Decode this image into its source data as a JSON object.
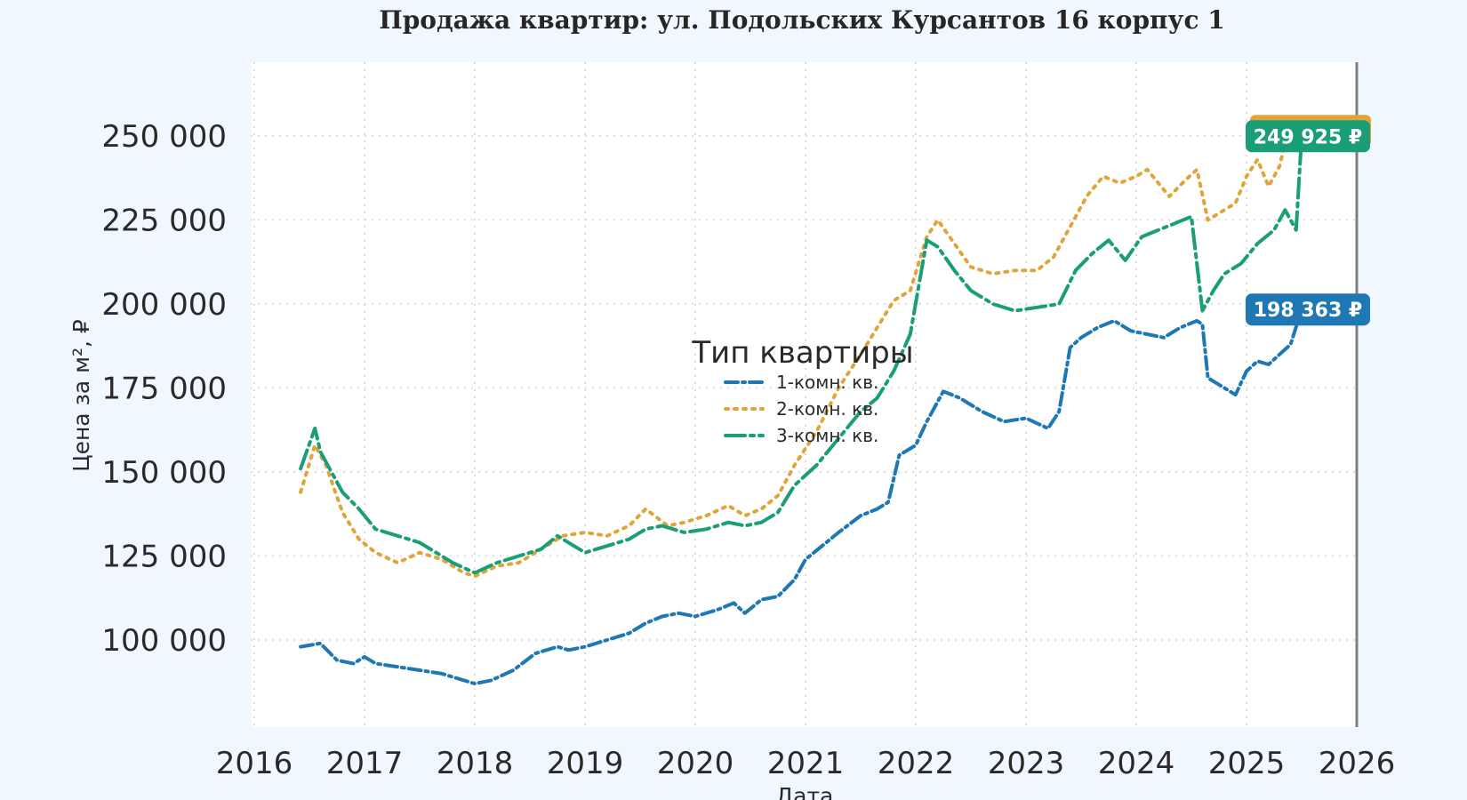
{
  "chart_data": {
    "type": "line",
    "title": "Продажа квартир: ул. Подольских Курсантов 16 корпус 1",
    "xlabel": "Дата",
    "ylabel": "Цена за м², ₽",
    "xlim": [
      2016,
      2026
    ],
    "ylim": [
      82000,
      270000
    ],
    "x_ticks": [
      "2016",
      "2017",
      "2018",
      "2019",
      "2020",
      "2021",
      "2022",
      "2023",
      "2024",
      "2025",
      "2026"
    ],
    "y_ticks": [
      "100 000",
      "125 000",
      "150 000",
      "175 000",
      "200 000",
      "225 000",
      "250 000"
    ],
    "y_tick_values": [
      100000,
      125000,
      150000,
      175000,
      200000,
      225000,
      250000
    ],
    "grid": true,
    "legend": {
      "title": "Тип квартиры",
      "position": "center"
    },
    "series": [
      {
        "name": "1-комн. кв.",
        "color": "#1f77b4",
        "dash": "dash-dot",
        "x": [
          2016.42,
          2016.6,
          2016.75,
          2016.9,
          2017.0,
          2017.1,
          2017.3,
          2017.5,
          2017.7,
          2017.9,
          2018.0,
          2018.15,
          2018.35,
          2018.55,
          2018.75,
          2018.85,
          2019.0,
          2019.2,
          2019.4,
          2019.55,
          2019.7,
          2019.85,
          2020.0,
          2020.2,
          2020.35,
          2020.45,
          2020.6,
          2020.75,
          2020.9,
          2021.0,
          2021.15,
          2021.3,
          2021.5,
          2021.65,
          2021.75,
          2021.85,
          2022.0,
          2022.1,
          2022.25,
          2022.4,
          2022.6,
          2022.8,
          2023.0,
          2023.2,
          2023.3,
          2023.4,
          2023.5,
          2023.65,
          2023.8,
          2023.95,
          2024.1,
          2024.25,
          2024.4,
          2024.55,
          2024.6,
          2024.65,
          2024.75,
          2024.9,
          2025.0,
          2025.1,
          2025.2,
          2025.3,
          2025.4,
          2025.5
        ],
        "values": [
          98000,
          99000,
          94000,
          93000,
          95000,
          93000,
          92000,
          91000,
          90000,
          88000,
          87000,
          88000,
          91000,
          96000,
          98000,
          97000,
          98000,
          100000,
          102000,
          105000,
          107000,
          108000,
          107000,
          109000,
          111000,
          108000,
          112000,
          113000,
          118000,
          124000,
          128000,
          132000,
          137000,
          139000,
          141000,
          155000,
          158000,
          165000,
          174000,
          172000,
          168000,
          165000,
          166000,
          163000,
          168000,
          187000,
          190000,
          193000,
          195000,
          192000,
          191000,
          190000,
          193000,
          195000,
          194000,
          178000,
          176000,
          173000,
          180000,
          183000,
          182000,
          185000,
          188000,
          198363
        ]
      },
      {
        "name": "2-комн. кв.",
        "color": "#e1a43a",
        "dash": "dotted",
        "x": [
          2016.42,
          2016.55,
          2016.65,
          2016.8,
          2016.95,
          2017.1,
          2017.3,
          2017.5,
          2017.7,
          2017.9,
          2018.0,
          2018.2,
          2018.4,
          2018.6,
          2018.8,
          2019.0,
          2019.2,
          2019.4,
          2019.55,
          2019.75,
          2019.9,
          2020.1,
          2020.3,
          2020.45,
          2020.6,
          2020.75,
          2020.9,
          2021.1,
          2021.3,
          2021.5,
          2021.65,
          2021.8,
          2021.95,
          2022.1,
          2022.2,
          2022.35,
          2022.5,
          2022.7,
          2022.9,
          2023.1,
          2023.25,
          2023.4,
          2023.55,
          2023.7,
          2023.85,
          2024.0,
          2024.1,
          2024.3,
          2024.45,
          2024.55,
          2024.65,
          2024.75,
          2024.9,
          2025.0,
          2025.1,
          2025.2,
          2025.3,
          2025.4,
          2025.5
        ],
        "values": [
          144000,
          158000,
          152000,
          138000,
          130000,
          126000,
          123000,
          126000,
          124000,
          120000,
          119000,
          122000,
          123000,
          127000,
          131000,
          132000,
          131000,
          134000,
          139000,
          134000,
          135000,
          137000,
          140000,
          137000,
          139000,
          143000,
          152000,
          162000,
          175000,
          185000,
          193000,
          201000,
          204000,
          220000,
          225000,
          218000,
          211000,
          209000,
          210000,
          210000,
          214000,
          223000,
          232000,
          238000,
          236000,
          238000,
          240000,
          232000,
          237000,
          240000,
          225000,
          227000,
          230000,
          238000,
          243000,
          235000,
          241000,
          255000,
          249925
        ]
      },
      {
        "name": "3-комн. кв.",
        "color": "#1a9e77",
        "dash": "long-dash-dot",
        "x": [
          2016.42,
          2016.55,
          2016.6,
          2016.7,
          2016.8,
          2016.95,
          2017.1,
          2017.3,
          2017.5,
          2017.65,
          2017.8,
          2018.0,
          2018.2,
          2018.4,
          2018.6,
          2018.75,
          2018.85,
          2019.0,
          2019.2,
          2019.4,
          2019.55,
          2019.7,
          2019.9,
          2020.1,
          2020.3,
          2020.45,
          2020.6,
          2020.75,
          2020.9,
          2021.1,
          2021.3,
          2021.5,
          2021.65,
          2021.8,
          2021.95,
          2022.1,
          2022.2,
          2022.35,
          2022.5,
          2022.7,
          2022.9,
          2023.1,
          2023.3,
          2023.45,
          2023.6,
          2023.75,
          2023.9,
          2024.05,
          2024.2,
          2024.35,
          2024.5,
          2024.6,
          2024.7,
          2024.8,
          2024.95,
          2025.1,
          2025.25,
          2025.35,
          2025.45,
          2025.5
        ],
        "values": [
          151000,
          163000,
          156000,
          150000,
          144000,
          139000,
          133000,
          131000,
          129000,
          126000,
          123000,
          120000,
          123000,
          125000,
          127000,
          131000,
          129000,
          126000,
          128000,
          130000,
          133000,
          134000,
          132000,
          133000,
          135000,
          134000,
          135000,
          138000,
          146000,
          152000,
          160000,
          168000,
          172000,
          180000,
          191000,
          219000,
          217000,
          210000,
          204000,
          200000,
          198000,
          199000,
          200000,
          210000,
          215000,
          219000,
          213000,
          220000,
          222000,
          224000,
          226000,
          198000,
          204000,
          209000,
          212000,
          218000,
          222000,
          228000,
          222000,
          249925
        ]
      }
    ],
    "end_labels": [
      {
        "text": "249 925 ₽",
        "value": 249925,
        "color": "#1a9e77",
        "accent": "#e1a43a"
      },
      {
        "text": "198 363 ₽",
        "value": 198363,
        "color": "#1f77b4"
      }
    ]
  }
}
